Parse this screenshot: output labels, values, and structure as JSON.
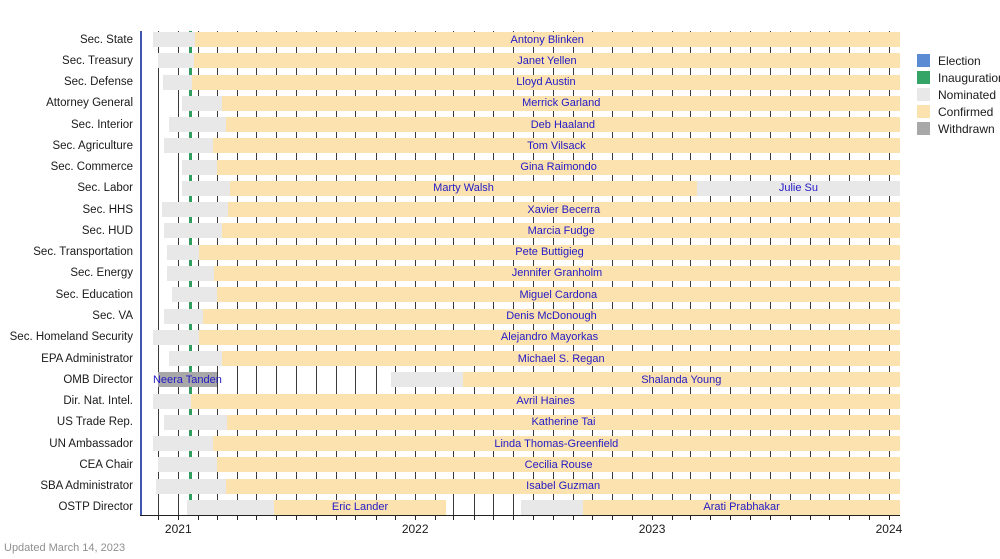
{
  "meta": {
    "updated_note": "Updated March 14, 2023"
  },
  "legend": {
    "items": [
      {
        "key": "election",
        "label": "Election",
        "color": "#5b8bd3"
      },
      {
        "key": "inauguration",
        "label": "Inauguration",
        "color": "#34a567"
      },
      {
        "key": "nominated",
        "label": "Nominated",
        "color": "#e8e8e8"
      },
      {
        "key": "confirmed",
        "label": "Confirmed",
        "color": "#fbe2af"
      },
      {
        "key": "withdrawn",
        "label": "Withdrawn",
        "color": "#a8a8a8"
      }
    ]
  },
  "chart_data": {
    "type": "gantt-timeline",
    "x_domain": [
      "2020-11-03",
      "2024-01-18"
    ],
    "x_ticks_years": [
      "2021",
      "2022",
      "2023",
      "2024"
    ],
    "grid": "monthly",
    "legend_position": "top-right",
    "events": [
      {
        "key": "election",
        "date": "2020-11-03",
        "line_color": "#3f57b2",
        "line_width": 2
      },
      {
        "key": "inauguration",
        "date": "2021-01-20",
        "line_color": "#2f9e5f",
        "line_width": 3
      }
    ],
    "rows": [
      {
        "label": "Sec. State",
        "segments": [
          {
            "status": "nominated",
            "start": "2020-11-23",
            "end": "2021-01-26"
          },
          {
            "status": "confirmed",
            "start": "2021-01-26",
            "end": "end",
            "name": "Antony Blinken"
          }
        ]
      },
      {
        "label": "Sec. Treasury",
        "segments": [
          {
            "status": "nominated",
            "start": "2020-11-30",
            "end": "2021-01-25"
          },
          {
            "status": "confirmed",
            "start": "2021-01-25",
            "end": "end",
            "name": "Janet Yellen"
          }
        ]
      },
      {
        "label": "Sec. Defense",
        "segments": [
          {
            "status": "nominated",
            "start": "2020-12-08",
            "end": "2021-01-22"
          },
          {
            "status": "confirmed",
            "start": "2021-01-22",
            "end": "end",
            "name": "Lloyd Austin"
          }
        ]
      },
      {
        "label": "Attorney General",
        "segments": [
          {
            "status": "nominated",
            "start": "2021-01-07",
            "end": "2021-03-10"
          },
          {
            "status": "confirmed",
            "start": "2021-03-10",
            "end": "end",
            "name": "Merrick Garland"
          }
        ]
      },
      {
        "label": "Sec. Interior",
        "segments": [
          {
            "status": "nominated",
            "start": "2020-12-17",
            "end": "2021-03-15"
          },
          {
            "status": "confirmed",
            "start": "2021-03-15",
            "end": "end",
            "name": "Deb Haaland"
          }
        ]
      },
      {
        "label": "Sec. Agriculture",
        "segments": [
          {
            "status": "nominated",
            "start": "2020-12-10",
            "end": "2021-02-23"
          },
          {
            "status": "confirmed",
            "start": "2021-02-23",
            "end": "end",
            "name": "Tom Vilsack"
          }
        ]
      },
      {
        "label": "Sec. Commerce",
        "segments": [
          {
            "status": "nominated",
            "start": "2021-01-07",
            "end": "2021-03-02"
          },
          {
            "status": "confirmed",
            "start": "2021-03-02",
            "end": "end",
            "name": "Gina Raimondo"
          }
        ]
      },
      {
        "label": "Sec. Labor",
        "segments": [
          {
            "status": "nominated",
            "start": "2021-01-07",
            "end": "2021-03-22"
          },
          {
            "status": "confirmed",
            "start": "2021-03-22",
            "end": "2023-03-11",
            "name": "Marty Walsh"
          },
          {
            "status": "nominated",
            "start": "2023-03-11",
            "end": "end",
            "name": "Julie Su"
          }
        ]
      },
      {
        "label": "Sec. HHS",
        "segments": [
          {
            "status": "nominated",
            "start": "2020-12-07",
            "end": "2021-03-18"
          },
          {
            "status": "confirmed",
            "start": "2021-03-18",
            "end": "end",
            "name": "Xavier Becerra"
          }
        ]
      },
      {
        "label": "Sec. HUD",
        "segments": [
          {
            "status": "nominated",
            "start": "2020-12-10",
            "end": "2021-03-10"
          },
          {
            "status": "confirmed",
            "start": "2021-03-10",
            "end": "end",
            "name": "Marcia Fudge"
          }
        ]
      },
      {
        "label": "Sec. Transportation",
        "segments": [
          {
            "status": "nominated",
            "start": "2020-12-15",
            "end": "2021-02-02"
          },
          {
            "status": "confirmed",
            "start": "2021-02-02",
            "end": "end",
            "name": "Pete Buttigieg"
          }
        ]
      },
      {
        "label": "Sec. Energy",
        "segments": [
          {
            "status": "nominated",
            "start": "2020-12-15",
            "end": "2021-02-25"
          },
          {
            "status": "confirmed",
            "start": "2021-02-25",
            "end": "end",
            "name": "Jennifer Granholm"
          }
        ]
      },
      {
        "label": "Sec. Education",
        "segments": [
          {
            "status": "nominated",
            "start": "2020-12-22",
            "end": "2021-03-01"
          },
          {
            "status": "confirmed",
            "start": "2021-03-01",
            "end": "end",
            "name": "Miguel Cardona"
          }
        ]
      },
      {
        "label": "Sec. VA",
        "segments": [
          {
            "status": "nominated",
            "start": "2020-12-10",
            "end": "2021-02-08"
          },
          {
            "status": "confirmed",
            "start": "2021-02-08",
            "end": "end",
            "name": "Denis McDonough"
          }
        ]
      },
      {
        "label": "Sec. Homeland Security",
        "segments": [
          {
            "status": "nominated",
            "start": "2020-11-23",
            "end": "2021-02-02"
          },
          {
            "status": "confirmed",
            "start": "2021-02-02",
            "end": "end",
            "name": "Alejandro Mayorkas"
          }
        ]
      },
      {
        "label": "EPA Administrator",
        "segments": [
          {
            "status": "nominated",
            "start": "2020-12-17",
            "end": "2021-03-10"
          },
          {
            "status": "confirmed",
            "start": "2021-03-10",
            "end": "end",
            "name": "Michael S. Regan"
          }
        ]
      },
      {
        "label": "OMB Director",
        "segments": [
          {
            "status": "withdrawn",
            "start": "2020-11-30",
            "end": "2021-03-02",
            "name": "Neera Tanden"
          },
          {
            "status": "nominated",
            "start": "2021-11-24",
            "end": "2022-03-15"
          },
          {
            "status": "confirmed",
            "start": "2022-03-15",
            "end": "end",
            "name": "Shalanda Young"
          }
        ]
      },
      {
        "label": "Dir. Nat. Intel.",
        "segments": [
          {
            "status": "nominated",
            "start": "2020-11-23",
            "end": "2021-01-21"
          },
          {
            "status": "confirmed",
            "start": "2021-01-21",
            "end": "end",
            "name": "Avril Haines"
          }
        ]
      },
      {
        "label": "US Trade Rep.",
        "segments": [
          {
            "status": "nominated",
            "start": "2020-12-10",
            "end": "2021-03-17"
          },
          {
            "status": "confirmed",
            "start": "2021-03-17",
            "end": "end",
            "name": "Katherine Tai"
          }
        ]
      },
      {
        "label": "UN Ambassador",
        "segments": [
          {
            "status": "nominated",
            "start": "2020-11-23",
            "end": "2021-02-23"
          },
          {
            "status": "confirmed",
            "start": "2021-02-23",
            "end": "end",
            "name": "Linda Thomas-Greenfield"
          }
        ]
      },
      {
        "label": "CEA Chair",
        "segments": [
          {
            "status": "nominated",
            "start": "2020-11-30",
            "end": "2021-03-02"
          },
          {
            "status": "confirmed",
            "start": "2021-03-02",
            "end": "end",
            "name": "Cecilia Rouse"
          }
        ]
      },
      {
        "label": "SBA Administrator",
        "segments": [
          {
            "status": "nominated",
            "start": "2020-11-28",
            "end": "2021-03-16"
          },
          {
            "status": "confirmed",
            "start": "2021-03-16",
            "end": "end",
            "name": "Isabel Guzman"
          }
        ]
      },
      {
        "label": "OSTP Director",
        "segments": [
          {
            "status": "nominated",
            "start": "2021-01-15",
            "end": "2021-05-28"
          },
          {
            "status": "confirmed",
            "start": "2021-05-28",
            "end": "2022-02-18",
            "name": "Eric Lander"
          },
          {
            "status": "nominated",
            "start": "2022-06-13",
            "end": "2022-09-17"
          },
          {
            "status": "confirmed",
            "start": "2022-09-17",
            "end": "end",
            "name": "Arati Prabhakar"
          }
        ]
      }
    ]
  }
}
